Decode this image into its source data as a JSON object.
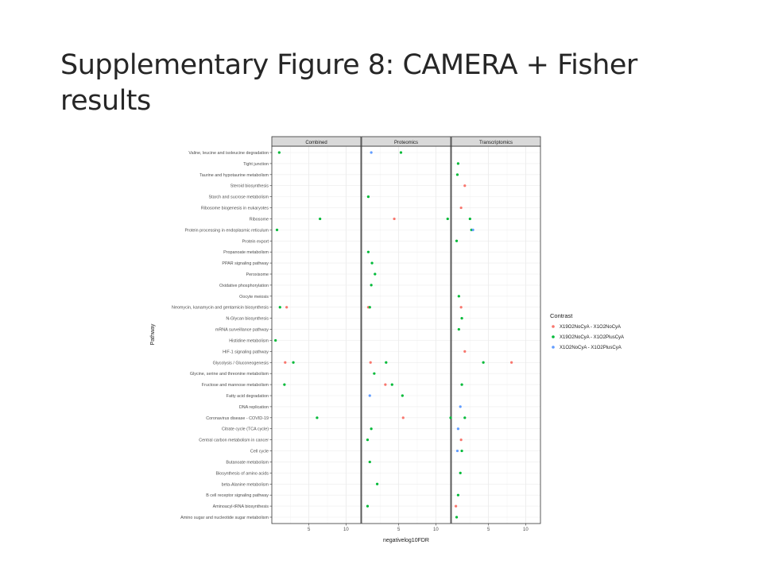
{
  "slide": {
    "title": "Supplementary Figure 8: CAMERA + Fisher results"
  },
  "colors": {
    "X19O2NoCyA - X1O2NoCyA": "#F8766D",
    "X19O2NoCyA - X1O2PlusCyA": "#00BA38",
    "X1O2NoCyA - X1O2PlusCyA": "#619CFF"
  },
  "chart_data": {
    "type": "scatter",
    "xlabel": "negativelog10FDR",
    "ylabel": "Pathway",
    "facets": [
      "Combined",
      "Proteomics",
      "Transcriptomics"
    ],
    "xlim": [
      0,
      12
    ],
    "x_ticks": [
      5,
      10
    ],
    "grid": true,
    "legend": {
      "title": "Contrast",
      "position": "right",
      "entries": [
        "X19O2NoCyA - X1O2NoCyA",
        "X19O2NoCyA - X1O2PlusCyA",
        "X1O2NoCyA - X1O2PlusCyA"
      ]
    },
    "pathways": [
      "Valine, leucine and isoleucine degradation",
      "Tight junction",
      "Taurine and hypotaurine metabolism",
      "Steroid biosynthesis",
      "Starch and sucrose metabolism",
      "Ribosome biogenesis in eukaryotes",
      "Ribosome",
      "Protein processing in endoplasmic reticulum",
      "Protein export",
      "Propanoate metabolism",
      "PPAR signaling pathway",
      "Peroxisome",
      "Oxidative phosphorylation",
      "Oocyte meiosis",
      "Neomycin, kanamycin and gentamicin biosynthesis",
      "N-Glycan biosynthesis",
      "mRNA surveillance pathway",
      "Histidine metabolism",
      "HIF-1 signaling pathway",
      "Glycolysis / Gluconeogenesis",
      "Glycine, serine and threonine metabolism",
      "Fructose and mannose metabolism",
      "Fatty acid degradation",
      "DNA replication",
      "Coronavirus disease - COVID-19",
      "Citrate cycle (TCA cycle)",
      "Central carbon metabolism in cancer",
      "Cell cycle",
      "Butanoate metabolism",
      "Biosynthesis of amino acids",
      "beta-Alanine metabolism",
      "B cell receptor signaling pathway",
      "Aminoacyl-tRNA biosynthesis",
      "Amino sugar and nucleotide sugar metabolism"
    ],
    "points": [
      {
        "facet": "Combined",
        "pathway": "Valine, leucine and isoleucine degradation",
        "contrast": "X19O2NoCyA - X1O2PlusCyA",
        "x": 1.0
      },
      {
        "facet": "Combined",
        "pathway": "Ribosome",
        "contrast": "X19O2NoCyA - X1O2PlusCyA",
        "x": 6.5
      },
      {
        "facet": "Combined",
        "pathway": "Protein processing in endoplasmic reticulum",
        "contrast": "X19O2NoCyA - X1O2PlusCyA",
        "x": 0.7
      },
      {
        "facet": "Combined",
        "pathway": "Neomycin, kanamycin and gentamicin biosynthesis",
        "contrast": "X19O2NoCyA - X1O2PlusCyA",
        "x": 1.1
      },
      {
        "facet": "Combined",
        "pathway": "Neomycin, kanamycin and gentamicin biosynthesis",
        "contrast": "X19O2NoCyA - X1O2NoCyA",
        "x": 2.0
      },
      {
        "facet": "Combined",
        "pathway": "Histidine metabolism",
        "contrast": "X19O2NoCyA - X1O2PlusCyA",
        "x": 0.5
      },
      {
        "facet": "Combined",
        "pathway": "Glycolysis / Gluconeogenesis",
        "contrast": "X19O2NoCyA - X1O2NoCyA",
        "x": 1.8
      },
      {
        "facet": "Combined",
        "pathway": "Glycolysis / Gluconeogenesis",
        "contrast": "X19O2NoCyA - X1O2PlusCyA",
        "x": 2.9
      },
      {
        "facet": "Combined",
        "pathway": "Fructose and mannose metabolism",
        "contrast": "X19O2NoCyA - X1O2PlusCyA",
        "x": 1.7
      },
      {
        "facet": "Combined",
        "pathway": "Coronavirus disease - COVID-19",
        "contrast": "X19O2NoCyA - X1O2PlusCyA",
        "x": 6.1
      },
      {
        "facet": "Proteomics",
        "pathway": "Valine, leucine and isoleucine degradation",
        "contrast": "X1O2NoCyA - X1O2PlusCyA",
        "x": 1.3
      },
      {
        "facet": "Proteomics",
        "pathway": "Valine, leucine and isoleucine degradation",
        "contrast": "X19O2NoCyA - X1O2PlusCyA",
        "x": 5.3
      },
      {
        "facet": "Proteomics",
        "pathway": "Starch and sucrose metabolism",
        "contrast": "X19O2NoCyA - X1O2PlusCyA",
        "x": 0.9
      },
      {
        "facet": "Proteomics",
        "pathway": "Ribosome",
        "contrast": "X19O2NoCyA - X1O2NoCyA",
        "x": 4.4
      },
      {
        "facet": "Proteomics",
        "pathway": "Ribosome",
        "contrast": "X19O2NoCyA - X1O2PlusCyA",
        "x": 11.6
      },
      {
        "facet": "Proteomics",
        "pathway": "Propanoate metabolism",
        "contrast": "X19O2NoCyA - X1O2PlusCyA",
        "x": 0.9
      },
      {
        "facet": "Proteomics",
        "pathway": "PPAR signaling pathway",
        "contrast": "X19O2NoCyA - X1O2PlusCyA",
        "x": 1.4
      },
      {
        "facet": "Proteomics",
        "pathway": "Peroxisome",
        "contrast": "X19O2NoCyA - X1O2PlusCyA",
        "x": 1.8
      },
      {
        "facet": "Proteomics",
        "pathway": "Oxidative phosphorylation",
        "contrast": "X19O2NoCyA - X1O2PlusCyA",
        "x": 1.3
      },
      {
        "facet": "Proteomics",
        "pathway": "Neomycin, kanamycin and gentamicin biosynthesis",
        "contrast": "X19O2NoCyA - X1O2NoCyA",
        "x": 0.9
      },
      {
        "facet": "Proteomics",
        "pathway": "Neomycin, kanamycin and gentamicin biosynthesis",
        "contrast": "X19O2NoCyA - X1O2PlusCyA",
        "x": 1.1
      },
      {
        "facet": "Proteomics",
        "pathway": "Glycolysis / Gluconeogenesis",
        "contrast": "X19O2NoCyA - X1O2NoCyA",
        "x": 1.2
      },
      {
        "facet": "Proteomics",
        "pathway": "Glycolysis / Gluconeogenesis",
        "contrast": "X19O2NoCyA - X1O2PlusCyA",
        "x": 3.3
      },
      {
        "facet": "Proteomics",
        "pathway": "Glycine, serine and threonine metabolism",
        "contrast": "X19O2NoCyA - X1O2PlusCyA",
        "x": 1.7
      },
      {
        "facet": "Proteomics",
        "pathway": "Fructose and mannose metabolism",
        "contrast": "X19O2NoCyA - X1O2NoCyA",
        "x": 3.2
      },
      {
        "facet": "Proteomics",
        "pathway": "Fructose and mannose metabolism",
        "contrast": "X19O2NoCyA - X1O2PlusCyA",
        "x": 4.1
      },
      {
        "facet": "Proteomics",
        "pathway": "Fatty acid degradation",
        "contrast": "X1O2NoCyA - X1O2PlusCyA",
        "x": 1.1
      },
      {
        "facet": "Proteomics",
        "pathway": "Fatty acid degradation",
        "contrast": "X19O2NoCyA - X1O2PlusCyA",
        "x": 5.5
      },
      {
        "facet": "Proteomics",
        "pathway": "Coronavirus disease - COVID-19",
        "contrast": "X19O2NoCyA - X1O2NoCyA",
        "x": 5.6
      },
      {
        "facet": "Proteomics",
        "pathway": "Coronavirus disease - COVID-19",
        "contrast": "X19O2NoCyA - X1O2PlusCyA",
        "x": 12.0
      },
      {
        "facet": "Proteomics",
        "pathway": "Citrate cycle (TCA cycle)",
        "contrast": "X19O2NoCyA - X1O2PlusCyA",
        "x": 1.3
      },
      {
        "facet": "Proteomics",
        "pathway": "Central carbon metabolism in cancer",
        "contrast": "X19O2NoCyA - X1O2PlusCyA",
        "x": 0.8
      },
      {
        "facet": "Proteomics",
        "pathway": "Butanoate metabolism",
        "contrast": "X19O2NoCyA - X1O2PlusCyA",
        "x": 1.1
      },
      {
        "facet": "Proteomics",
        "pathway": "beta-Alanine metabolism",
        "contrast": "X19O2NoCyA - X1O2PlusCyA",
        "x": 2.1
      },
      {
        "facet": "Proteomics",
        "pathway": "Aminoacyl-tRNA biosynthesis",
        "contrast": "X19O2NoCyA - X1O2PlusCyA",
        "x": 0.8
      },
      {
        "facet": "Transcriptomics",
        "pathway": "Tight junction",
        "contrast": "X19O2NoCyA - X1O2PlusCyA",
        "x": 0.9
      },
      {
        "facet": "Transcriptomics",
        "pathway": "Taurine and hypotaurine metabolism",
        "contrast": "X19O2NoCyA - X1O2PlusCyA",
        "x": 0.8
      },
      {
        "facet": "Transcriptomics",
        "pathway": "Steroid biosynthesis",
        "contrast": "X19O2NoCyA - X1O2NoCyA",
        "x": 1.8
      },
      {
        "facet": "Transcriptomics",
        "pathway": "Ribosome biogenesis in eukaryotes",
        "contrast": "X19O2NoCyA - X1O2NoCyA",
        "x": 1.3
      },
      {
        "facet": "Transcriptomics",
        "pathway": "Ribosome",
        "contrast": "X19O2NoCyA - X1O2PlusCyA",
        "x": 2.5
      },
      {
        "facet": "Transcriptomics",
        "pathway": "Protein processing in endoplasmic reticulum",
        "contrast": "X19O2NoCyA - X1O2PlusCyA",
        "x": 2.7
      },
      {
        "facet": "Transcriptomics",
        "pathway": "Protein processing in endoplasmic reticulum",
        "contrast": "X1O2NoCyA - X1O2PlusCyA",
        "x": 2.9
      },
      {
        "facet": "Transcriptomics",
        "pathway": "Protein export",
        "contrast": "X19O2NoCyA - X1O2PlusCyA",
        "x": 0.7
      },
      {
        "facet": "Transcriptomics",
        "pathway": "Oocyte meiosis",
        "contrast": "X19O2NoCyA - X1O2PlusCyA",
        "x": 1.0
      },
      {
        "facet": "Transcriptomics",
        "pathway": "Neomycin, kanamycin and gentamicin biosynthesis",
        "contrast": "X19O2NoCyA - X1O2NoCyA",
        "x": 1.3
      },
      {
        "facet": "Transcriptomics",
        "pathway": "N-Glycan biosynthesis",
        "contrast": "X19O2NoCyA - X1O2PlusCyA",
        "x": 1.4
      },
      {
        "facet": "Transcriptomics",
        "pathway": "mRNA surveillance pathway",
        "contrast": "X19O2NoCyA - X1O2PlusCyA",
        "x": 1.0
      },
      {
        "facet": "Transcriptomics",
        "pathway": "HIF-1 signaling pathway",
        "contrast": "X19O2NoCyA - X1O2NoCyA",
        "x": 1.8
      },
      {
        "facet": "Transcriptomics",
        "pathway": "Glycolysis / Gluconeogenesis",
        "contrast": "X19O2NoCyA - X1O2PlusCyA",
        "x": 4.3
      },
      {
        "facet": "Transcriptomics",
        "pathway": "Glycolysis / Gluconeogenesis",
        "contrast": "X19O2NoCyA - X1O2NoCyA",
        "x": 8.1
      },
      {
        "facet": "Transcriptomics",
        "pathway": "Fructose and mannose metabolism",
        "contrast": "X19O2NoCyA - X1O2PlusCyA",
        "x": 1.4
      },
      {
        "facet": "Transcriptomics",
        "pathway": "DNA replication",
        "contrast": "X1O2NoCyA - X1O2PlusCyA",
        "x": 1.2
      },
      {
        "facet": "Transcriptomics",
        "pathway": "Coronavirus disease - COVID-19",
        "contrast": "X19O2NoCyA - X1O2PlusCyA",
        "x": 1.8
      },
      {
        "facet": "Transcriptomics",
        "pathway": "Citrate cycle (TCA cycle)",
        "contrast": "X1O2NoCyA - X1O2PlusCyA",
        "x": 0.9
      },
      {
        "facet": "Transcriptomics",
        "pathway": "Central carbon metabolism in cancer",
        "contrast": "X19O2NoCyA - X1O2NoCyA",
        "x": 1.3
      },
      {
        "facet": "Transcriptomics",
        "pathway": "Cell cycle",
        "contrast": "X1O2NoCyA - X1O2PlusCyA",
        "x": 0.8
      },
      {
        "facet": "Transcriptomics",
        "pathway": "Cell cycle",
        "contrast": "X19O2NoCyA - X1O2PlusCyA",
        "x": 1.4
      },
      {
        "facet": "Transcriptomics",
        "pathway": "Biosynthesis of amino acids",
        "contrast": "X19O2NoCyA - X1O2PlusCyA",
        "x": 1.2
      },
      {
        "facet": "Transcriptomics",
        "pathway": "B cell receptor signaling pathway",
        "contrast": "X19O2NoCyA - X1O2PlusCyA",
        "x": 0.9
      },
      {
        "facet": "Transcriptomics",
        "pathway": "Aminoacyl-tRNA biosynthesis",
        "contrast": "X19O2NoCyA - X1O2NoCyA",
        "x": 0.6
      },
      {
        "facet": "Transcriptomics",
        "pathway": "Amino sugar and nucleotide sugar metabolism",
        "contrast": "X19O2NoCyA - X1O2PlusCyA",
        "x": 0.7
      }
    ]
  }
}
